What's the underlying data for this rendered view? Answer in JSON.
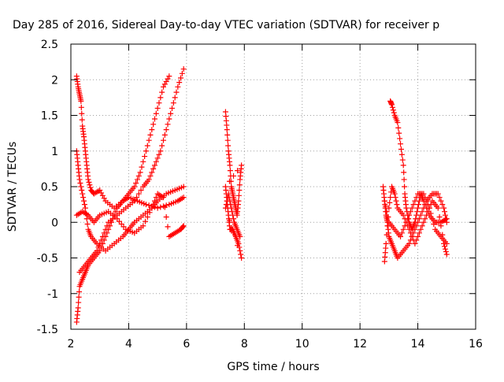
{
  "chart_data": {
    "type": "scatter",
    "title": "Day 285 of 2016, Sidereal Day-to-day VTEC variation (SDTVAR) for receiver p",
    "xlabel": "GPS time / hours",
    "ylabel": "SDTVAR / TECUs",
    "xlim": [
      2,
      16
    ],
    "ylim": [
      -1.5,
      2.5
    ],
    "x_ticks": [
      2,
      4,
      6,
      8,
      10,
      12,
      14,
      16
    ],
    "x_tick_labels": [
      "2",
      "4",
      "6",
      "8",
      "10",
      "12",
      "14",
      "16"
    ],
    "y_ticks": [
      -1.5,
      -1,
      -0.5,
      0,
      0.5,
      1,
      1.5,
      2,
      2.5
    ],
    "y_tick_labels": [
      "-1.5",
      "-1",
      "-0.5",
      "0",
      "0.5",
      "1",
      "1.5",
      "2",
      "2.5"
    ],
    "grid": true,
    "legend": "none",
    "marker": "plus",
    "marker_color": "#ff0000",
    "series": [
      {
        "points": [
          [
            2.2,
            2.05
          ],
          [
            2.25,
            1.9
          ],
          [
            2.3,
            1.8
          ],
          [
            2.35,
            1.7
          ],
          [
            2.4,
            1.35
          ],
          [
            2.45,
            1.2
          ],
          [
            2.5,
            1.0
          ],
          [
            2.55,
            0.8
          ],
          [
            2.6,
            0.6
          ],
          [
            2.7,
            0.45
          ],
          [
            2.8,
            0.4
          ],
          [
            3.0,
            0.45
          ],
          [
            3.2,
            0.3
          ],
          [
            3.5,
            0.2
          ],
          [
            3.8,
            0.3
          ],
          [
            4.0,
            0.35
          ],
          [
            4.3,
            0.3
          ],
          [
            4.6,
            0.25
          ],
          [
            5.0,
            0.2
          ],
          [
            5.4,
            0.25
          ],
          [
            5.7,
            0.3
          ],
          [
            5.9,
            0.35
          ]
        ]
      },
      {
        "points": [
          [
            2.2,
            1.0
          ],
          [
            2.25,
            0.8
          ],
          [
            2.3,
            0.6
          ],
          [
            2.4,
            0.4
          ],
          [
            2.5,
            0.2
          ],
          [
            2.6,
            -0.1
          ],
          [
            2.7,
            -0.2
          ],
          [
            2.9,
            -0.3
          ],
          [
            3.2,
            -0.4
          ],
          [
            3.5,
            -0.3
          ],
          [
            3.8,
            -0.2
          ],
          [
            4.0,
            -0.1
          ],
          [
            4.2,
            0.0
          ],
          [
            4.5,
            0.1
          ],
          [
            4.8,
            0.2
          ],
          [
            5.0,
            0.3
          ],
          [
            5.3,
            0.4
          ],
          [
            5.6,
            0.45
          ],
          [
            5.9,
            0.5
          ]
        ]
      },
      {
        "points": [
          [
            2.2,
            -1.4
          ],
          [
            2.25,
            -1.2
          ],
          [
            2.3,
            -0.9
          ],
          [
            2.4,
            -0.8
          ],
          [
            2.5,
            -0.7
          ],
          [
            2.6,
            -0.6
          ],
          [
            2.8,
            -0.5
          ],
          [
            3.0,
            -0.4
          ],
          [
            3.2,
            -0.2
          ],
          [
            3.4,
            0.0
          ],
          [
            3.6,
            0.2
          ],
          [
            3.8,
            0.3
          ],
          [
            4.0,
            0.4
          ],
          [
            4.2,
            0.5
          ],
          [
            4.4,
            0.7
          ],
          [
            4.6,
            1.0
          ],
          [
            4.8,
            1.3
          ],
          [
            5.0,
            1.6
          ],
          [
            5.2,
            1.9
          ],
          [
            5.4,
            2.05
          ]
        ]
      },
      {
        "points": [
          [
            2.3,
            -0.7
          ],
          [
            2.5,
            -0.6
          ],
          [
            2.7,
            -0.5
          ],
          [
            2.9,
            -0.4
          ],
          [
            3.1,
            -0.2
          ],
          [
            3.3,
            0.0
          ],
          [
            3.6,
            0.1
          ],
          [
            3.9,
            0.2
          ],
          [
            4.2,
            0.3
          ],
          [
            4.5,
            0.5
          ],
          [
            4.7,
            0.6
          ],
          [
            4.9,
            0.8
          ],
          [
            5.1,
            1.0
          ],
          [
            5.3,
            1.3
          ],
          [
            5.5,
            1.6
          ],
          [
            5.7,
            1.9
          ],
          [
            5.9,
            2.15
          ]
        ]
      },
      {
        "points": [
          [
            2.2,
            0.1
          ],
          [
            2.4,
            0.15
          ],
          [
            2.6,
            0.1
          ],
          [
            2.8,
            0.0
          ],
          [
            3.0,
            0.1
          ],
          [
            3.3,
            0.15
          ],
          [
            3.6,
            0.05
          ],
          [
            3.9,
            -0.1
          ],
          [
            4.2,
            -0.15
          ],
          [
            4.5,
            -0.05
          ],
          [
            4.8,
            0.2
          ],
          [
            5.0,
            0.4
          ],
          [
            5.2,
            0.35
          ],
          [
            5.4,
            -0.2
          ],
          [
            5.6,
            -0.15
          ],
          [
            5.8,
            -0.1
          ],
          [
            5.9,
            -0.05
          ]
        ]
      },
      {
        "points": [
          [
            7.35,
            1.55
          ],
          [
            7.4,
            1.3
          ],
          [
            7.45,
            1.0
          ],
          [
            7.5,
            0.8
          ],
          [
            7.55,
            0.5
          ],
          [
            7.6,
            0.4
          ],
          [
            7.65,
            0.3
          ],
          [
            7.7,
            0.2
          ],
          [
            7.75,
            0.1
          ],
          [
            7.8,
            0.3
          ],
          [
            7.85,
            0.6
          ],
          [
            7.9,
            0.8
          ],
          [
            7.35,
            0.5
          ],
          [
            7.4,
            0.3
          ],
          [
            7.45,
            0.1
          ],
          [
            7.5,
            -0.1
          ],
          [
            7.6,
            -0.1
          ],
          [
            7.7,
            -0.2
          ],
          [
            7.8,
            -0.3
          ],
          [
            7.9,
            -0.5
          ],
          [
            7.35,
            0.2
          ],
          [
            7.45,
            0.4
          ],
          [
            7.55,
            0.2
          ],
          [
            7.65,
            0.0
          ],
          [
            7.75,
            -0.1
          ],
          [
            7.85,
            -0.2
          ]
        ]
      },
      {
        "points": [
          [
            12.8,
            0.5
          ],
          [
            12.85,
            0.3
          ],
          [
            12.9,
            0.1
          ],
          [
            12.95,
            0.0
          ],
          [
            13.0,
            -0.2
          ],
          [
            13.1,
            -0.3
          ],
          [
            13.2,
            -0.4
          ],
          [
            13.3,
            -0.5
          ],
          [
            13.5,
            -0.4
          ],
          [
            13.7,
            -0.3
          ],
          [
            13.9,
            -0.1
          ],
          [
            14.1,
            0.1
          ],
          [
            14.3,
            0.3
          ],
          [
            14.5,
            0.4
          ],
          [
            14.7,
            0.4
          ],
          [
            14.9,
            0.2
          ],
          [
            15.0,
            0.0
          ]
        ]
      },
      {
        "points": [
          [
            12.85,
            -0.55
          ],
          [
            12.9,
            -0.3
          ],
          [
            13.0,
            0.2
          ],
          [
            13.1,
            0.5
          ],
          [
            13.2,
            0.4
          ],
          [
            13.3,
            0.2
          ],
          [
            13.5,
            0.1
          ],
          [
            13.7,
            -0.1
          ],
          [
            13.9,
            -0.3
          ],
          [
            14.1,
            -0.1
          ],
          [
            14.3,
            0.1
          ],
          [
            14.5,
            0.3
          ],
          [
            14.7,
            0.2
          ],
          [
            14.9,
            -0.3
          ],
          [
            15.0,
            -0.45
          ]
        ]
      },
      {
        "points": [
          [
            13.05,
            1.7
          ],
          [
            13.1,
            1.65
          ],
          [
            13.2,
            1.5
          ],
          [
            13.3,
            1.4
          ],
          [
            13.4,
            1.1
          ],
          [
            13.5,
            0.8
          ],
          [
            13.55,
            0.4
          ],
          [
            13.6,
            0.2
          ],
          [
            13.7,
            0.0
          ],
          [
            13.8,
            -0.1
          ],
          [
            13.9,
            0.0
          ],
          [
            14.0,
            0.2
          ],
          [
            14.1,
            0.4
          ],
          [
            14.2,
            0.3
          ],
          [
            14.4,
            0.1
          ],
          [
            14.6,
            0.0
          ],
          [
            14.8,
            0.0
          ],
          [
            15.0,
            0.05
          ]
        ]
      },
      {
        "points": [
          [
            12.85,
            0.3
          ],
          [
            13.0,
            0.0
          ],
          [
            13.2,
            -0.1
          ],
          [
            13.4,
            -0.2
          ],
          [
            13.6,
            0.0
          ],
          [
            13.8,
            0.2
          ],
          [
            14.0,
            0.4
          ],
          [
            14.2,
            0.4
          ],
          [
            14.4,
            0.2
          ],
          [
            14.6,
            -0.1
          ],
          [
            14.8,
            -0.2
          ],
          [
            15.0,
            -0.3
          ]
        ]
      }
    ]
  }
}
